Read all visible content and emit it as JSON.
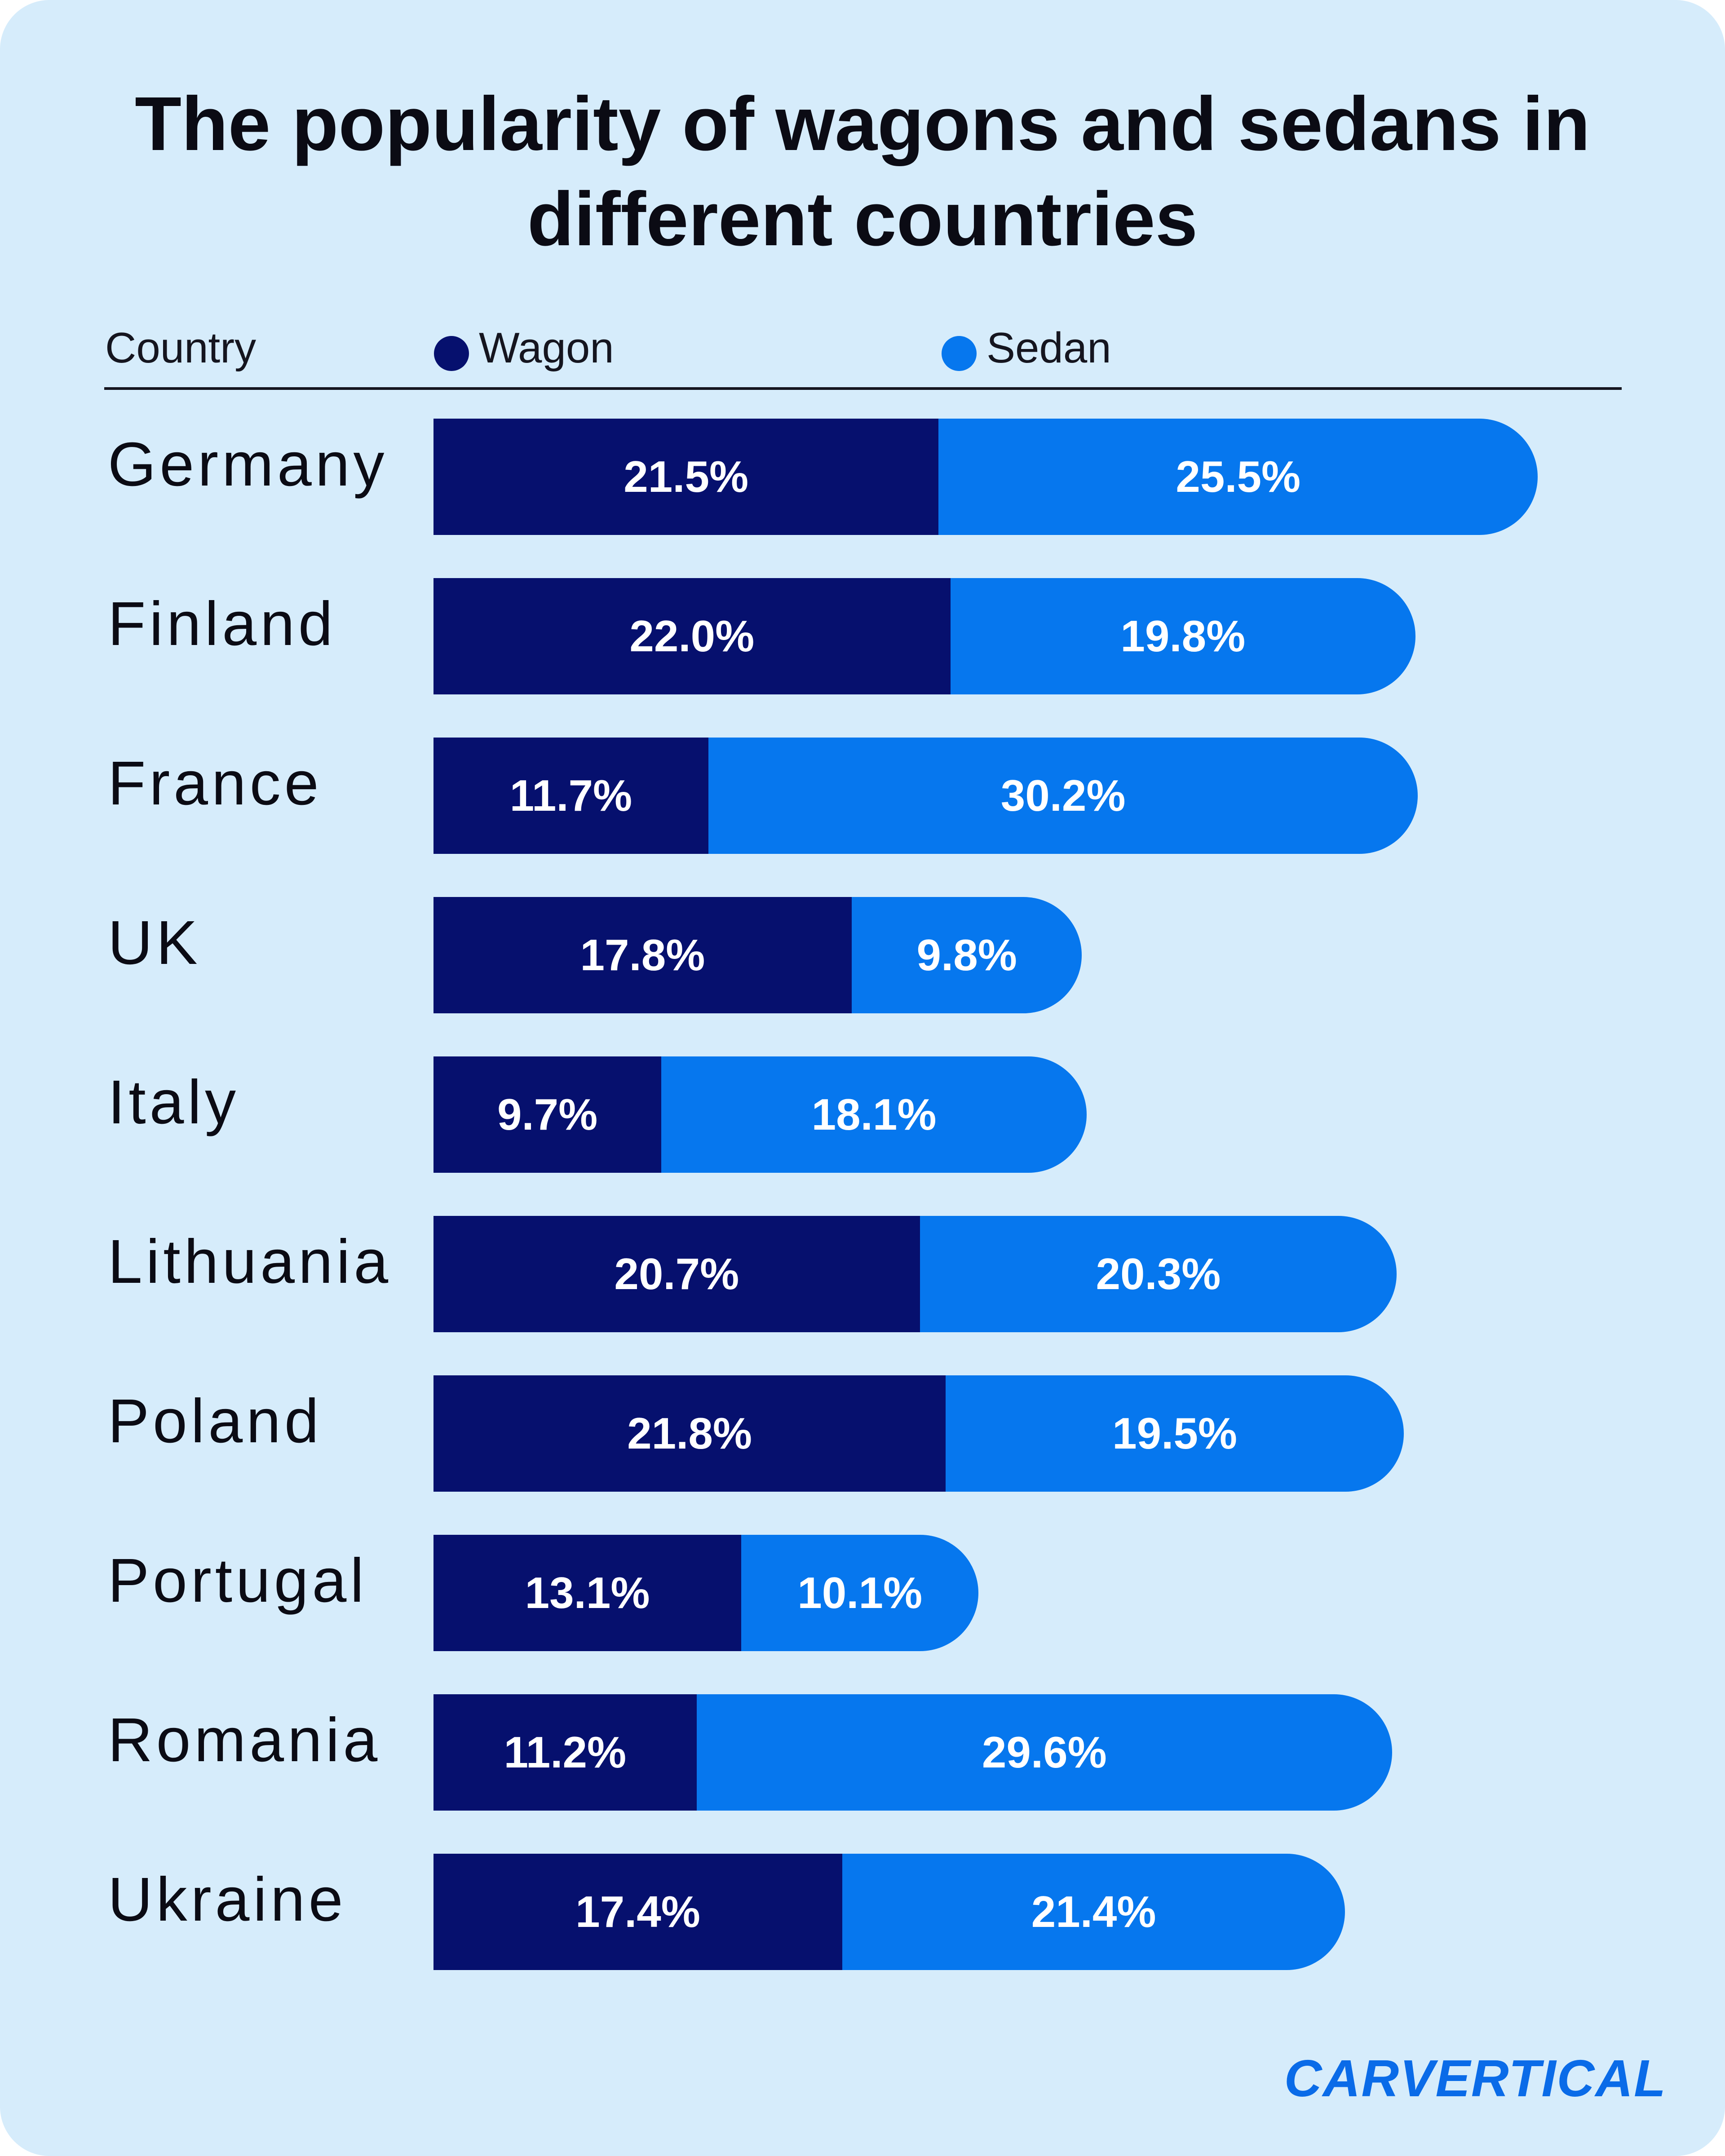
{
  "title": "The popularity of wagons and sedans in different countries",
  "header": {
    "country_label": "Country"
  },
  "brand": "CARVERTICAL",
  "colors": {
    "wagon": "#06106e",
    "sedan": "#0677ee",
    "background": "#d6ecfb"
  },
  "chart_data": {
    "type": "bar",
    "stacked": true,
    "orientation": "horizontal",
    "title": "The popularity of wagons and sedans in different countries",
    "categories": [
      "Germany",
      "Finland",
      "France",
      "UK",
      "Italy",
      "Lithuania",
      "Poland",
      "Portugal",
      "Romania",
      "Ukraine"
    ],
    "series": [
      {
        "name": "Wagon",
        "values": [
          21.5,
          22.0,
          11.7,
          17.8,
          9.7,
          20.7,
          21.8,
          13.1,
          11.2,
          17.4
        ],
        "labels": [
          "21.5%",
          "22.0%",
          "11.7%",
          "17.8%",
          "9.7%",
          "20.7%",
          "21.8%",
          "13.1%",
          "11.2%",
          "17.4%"
        ]
      },
      {
        "name": "Sedan",
        "values": [
          25.5,
          19.8,
          30.2,
          9.8,
          18.1,
          20.3,
          19.5,
          10.1,
          29.6,
          21.4
        ],
        "labels": [
          "25.5%",
          "19.8%",
          "30.2%",
          "9.8%",
          "18.1%",
          "20.3%",
          "19.5%",
          "10.1%",
          "29.6%",
          "21.4%"
        ]
      }
    ],
    "legend_position": "top",
    "grid": false
  }
}
